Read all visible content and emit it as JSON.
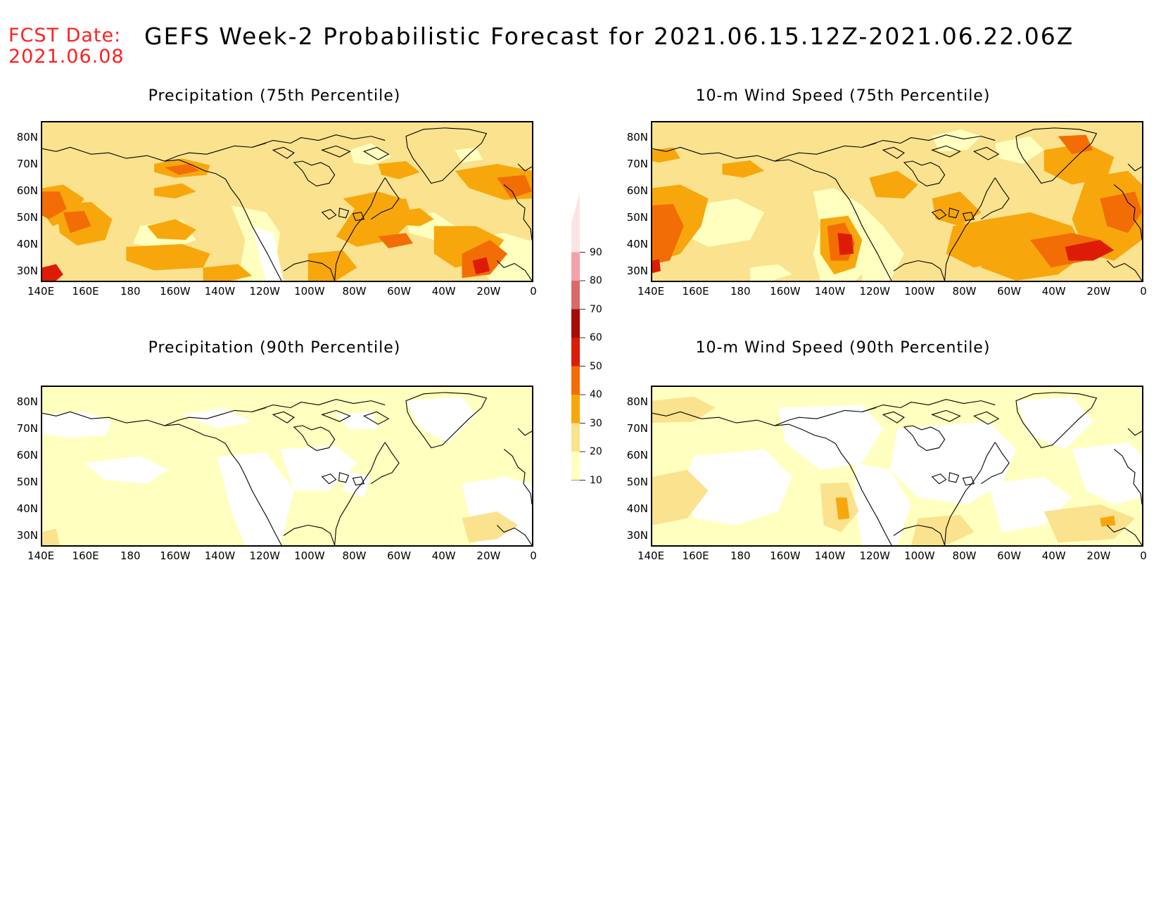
{
  "header": {
    "fcst_line1": "FCST Date:",
    "fcst_line2": "2021.06.08",
    "title": "GEFS Week-2 Probabilistic Forecast for 2021.06.15.12Z-2021.06.22.06Z"
  },
  "colors": {
    "c10": "#ffffbf",
    "c20": "#fbe28e",
    "c30": "#f7a70c",
    "c40": "#f36d06",
    "c50": "#dc1c06",
    "c60": "#a60c06",
    "c70": "#da6a6a",
    "c80": "#f2a3a8",
    "c90": "#fde4e4",
    "coast": "#000000"
  },
  "colorbar": {
    "levels": [
      "10",
      "20",
      "30",
      "40",
      "50",
      "60",
      "70",
      "80",
      "90"
    ]
  },
  "axes": {
    "lat_labels": [
      "80N",
      "70N",
      "60N",
      "50N",
      "40N",
      "30N"
    ],
    "lon_labels": [
      "140E",
      "160E",
      "180",
      "160W",
      "140W",
      "120W",
      "100W",
      "80W",
      "60W",
      "40W",
      "20W",
      "0"
    ]
  },
  "panels": [
    {
      "id": "precip75",
      "title": "Precipitation (75th Percentile)"
    },
    {
      "id": "wind75",
      "title": "10-m Wind Speed (75th Percentile)"
    },
    {
      "id": "precip90",
      "title": "Precipitation (90th Percentile)"
    },
    {
      "id": "wind90",
      "title": "10-m Wind Speed (90th Percentile)"
    }
  ]
}
